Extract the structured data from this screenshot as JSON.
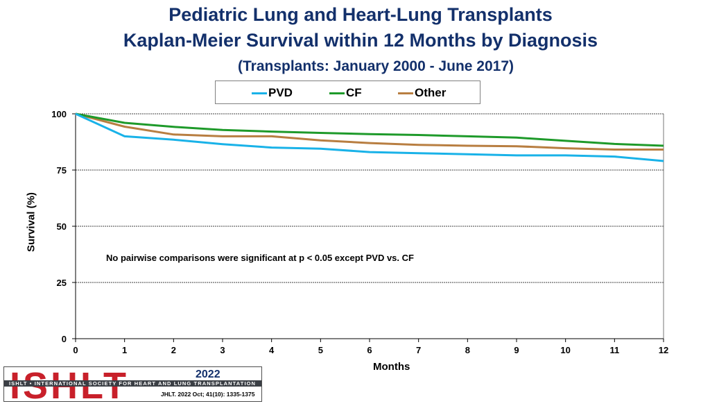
{
  "titles": {
    "line1": "Pediatric Lung and Heart-Lung Transplants",
    "line2": "Kaplan-Meier Survival within 12 Months by Diagnosis",
    "line3": "(Transplants: January 2000 - June 2017)"
  },
  "annotation": "No pairwise comparisons were significant at p < 0.05 except PVD vs. CF",
  "chart_data": {
    "type": "line",
    "title": "Pediatric Lung and Heart-Lung Transplants Kaplan-Meier Survival within 12 Months by Diagnosis",
    "xlabel": "Months",
    "ylabel": "Survival (%)",
    "x": [
      0,
      1,
      2,
      3,
      4,
      5,
      6,
      7,
      8,
      9,
      10,
      11,
      12
    ],
    "xlim": [
      0,
      12
    ],
    "ylim": [
      0,
      100
    ],
    "yticks": [
      0,
      25,
      50,
      75,
      100
    ],
    "grid": "horizontal dashed",
    "legend": "top-center",
    "series": [
      {
        "name": "PVD",
        "color": "#19b2e8",
        "values": [
          100,
          90,
          88.5,
          86.5,
          85,
          84.5,
          83,
          82.5,
          82,
          81.5,
          81.5,
          81,
          79
        ]
      },
      {
        "name": "CF",
        "color": "#1e9a2a",
        "values": [
          100,
          96,
          94.2,
          92.8,
          92.1,
          91.5,
          91,
          90.6,
          90,
          89.4,
          88,
          86.6,
          85.8
        ]
      },
      {
        "name": "Other",
        "color": "#b87e41",
        "values": [
          100,
          94.3,
          90.8,
          90,
          90,
          88.2,
          87,
          86.2,
          85.8,
          85.6,
          84.7,
          84.1,
          84.1
        ]
      }
    ]
  },
  "logo": {
    "wordmark": "ISHLT",
    "tagline": "ISHLT • INTERNATIONAL SOCIETY FOR HEART AND LUNG TRANSPLANTATION",
    "year": "2022",
    "citation": "JHLT. 2022 Oct; 41(10): 1335-1375"
  }
}
